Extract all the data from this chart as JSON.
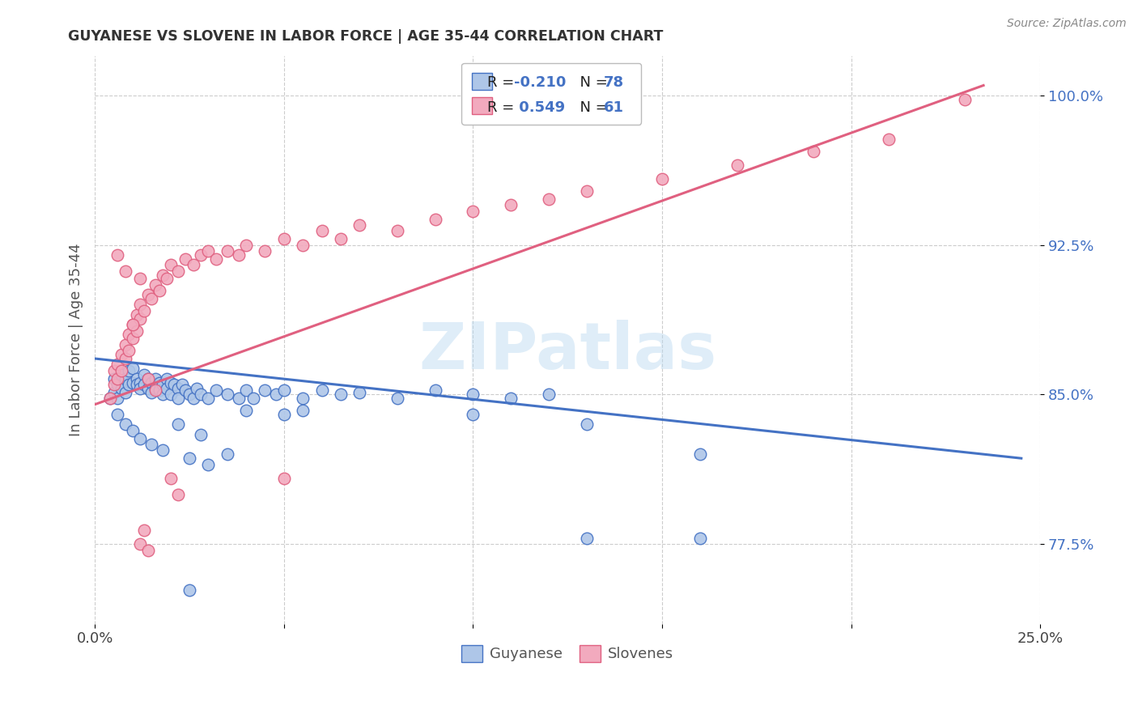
{
  "title": "GUYANESE VS SLOVENE IN LABOR FORCE | AGE 35-44 CORRELATION CHART",
  "source": "Source: ZipAtlas.com",
  "ylabel": "In Labor Force | Age 35-44",
  "yticks": [
    0.775,
    0.85,
    0.925,
    1.0
  ],
  "ytick_labels": [
    "77.5%",
    "85.0%",
    "92.5%",
    "100.0%"
  ],
  "xlim": [
    0.0,
    0.25
  ],
  "ylim": [
    0.735,
    1.02
  ],
  "blue_color": "#aec6e8",
  "pink_color": "#f2aabe",
  "blue_line_color": "#4472c4",
  "pink_line_color": "#e06080",
  "blue_line": [
    [
      0.0,
      0.868
    ],
    [
      0.245,
      0.818
    ]
  ],
  "pink_line": [
    [
      0.0,
      0.845
    ],
    [
      0.235,
      1.005
    ]
  ],
  "blue_scatter": [
    [
      0.004,
      0.848
    ],
    [
      0.005,
      0.851
    ],
    [
      0.005,
      0.858
    ],
    [
      0.006,
      0.855
    ],
    [
      0.006,
      0.848
    ],
    [
      0.007,
      0.853
    ],
    [
      0.007,
      0.86
    ],
    [
      0.008,
      0.858
    ],
    [
      0.008,
      0.851
    ],
    [
      0.009,
      0.862
    ],
    [
      0.009,
      0.855
    ],
    [
      0.01,
      0.863
    ],
    [
      0.01,
      0.856
    ],
    [
      0.011,
      0.858
    ],
    [
      0.011,
      0.855
    ],
    [
      0.012,
      0.856
    ],
    [
      0.012,
      0.853
    ],
    [
      0.013,
      0.86
    ],
    [
      0.013,
      0.855
    ],
    [
      0.014,
      0.858
    ],
    [
      0.014,
      0.853
    ],
    [
      0.015,
      0.856
    ],
    [
      0.015,
      0.851
    ],
    [
      0.016,
      0.858
    ],
    [
      0.016,
      0.853
    ],
    [
      0.017,
      0.856
    ],
    [
      0.017,
      0.852
    ],
    [
      0.018,
      0.855
    ],
    [
      0.018,
      0.85
    ],
    [
      0.019,
      0.858
    ],
    [
      0.019,
      0.853
    ],
    [
      0.02,
      0.856
    ],
    [
      0.02,
      0.85
    ],
    [
      0.021,
      0.855
    ],
    [
      0.022,
      0.853
    ],
    [
      0.022,
      0.848
    ],
    [
      0.023,
      0.855
    ],
    [
      0.024,
      0.852
    ],
    [
      0.025,
      0.85
    ],
    [
      0.026,
      0.848
    ],
    [
      0.027,
      0.853
    ],
    [
      0.028,
      0.85
    ],
    [
      0.03,
      0.848
    ],
    [
      0.032,
      0.852
    ],
    [
      0.035,
      0.85
    ],
    [
      0.038,
      0.848
    ],
    [
      0.04,
      0.852
    ],
    [
      0.042,
      0.848
    ],
    [
      0.045,
      0.852
    ],
    [
      0.048,
      0.85
    ],
    [
      0.05,
      0.852
    ],
    [
      0.055,
      0.848
    ],
    [
      0.06,
      0.852
    ],
    [
      0.065,
      0.85
    ],
    [
      0.07,
      0.851
    ],
    [
      0.08,
      0.848
    ],
    [
      0.09,
      0.852
    ],
    [
      0.1,
      0.85
    ],
    [
      0.11,
      0.848
    ],
    [
      0.12,
      0.85
    ],
    [
      0.006,
      0.84
    ],
    [
      0.008,
      0.835
    ],
    [
      0.01,
      0.832
    ],
    [
      0.012,
      0.828
    ],
    [
      0.015,
      0.825
    ],
    [
      0.018,
      0.822
    ],
    [
      0.025,
      0.818
    ],
    [
      0.03,
      0.815
    ],
    [
      0.022,
      0.835
    ],
    [
      0.028,
      0.83
    ],
    [
      0.035,
      0.82
    ],
    [
      0.04,
      0.842
    ],
    [
      0.05,
      0.84
    ],
    [
      0.055,
      0.842
    ],
    [
      0.1,
      0.84
    ],
    [
      0.13,
      0.835
    ],
    [
      0.16,
      0.82
    ],
    [
      0.13,
      0.778
    ],
    [
      0.16,
      0.778
    ],
    [
      0.025,
      0.752
    ]
  ],
  "pink_scatter": [
    [
      0.004,
      0.848
    ],
    [
      0.005,
      0.855
    ],
    [
      0.005,
      0.862
    ],
    [
      0.006,
      0.858
    ],
    [
      0.006,
      0.865
    ],
    [
      0.007,
      0.862
    ],
    [
      0.007,
      0.87
    ],
    [
      0.008,
      0.868
    ],
    [
      0.008,
      0.875
    ],
    [
      0.009,
      0.872
    ],
    [
      0.009,
      0.88
    ],
    [
      0.01,
      0.878
    ],
    [
      0.01,
      0.885
    ],
    [
      0.011,
      0.882
    ],
    [
      0.011,
      0.89
    ],
    [
      0.012,
      0.888
    ],
    [
      0.012,
      0.895
    ],
    [
      0.013,
      0.892
    ],
    [
      0.014,
      0.9
    ],
    [
      0.015,
      0.898
    ],
    [
      0.016,
      0.905
    ],
    [
      0.017,
      0.902
    ],
    [
      0.018,
      0.91
    ],
    [
      0.019,
      0.908
    ],
    [
      0.02,
      0.915
    ],
    [
      0.022,
      0.912
    ],
    [
      0.024,
      0.918
    ],
    [
      0.026,
      0.915
    ],
    [
      0.028,
      0.92
    ],
    [
      0.03,
      0.922
    ],
    [
      0.032,
      0.918
    ],
    [
      0.035,
      0.922
    ],
    [
      0.038,
      0.92
    ],
    [
      0.04,
      0.925
    ],
    [
      0.045,
      0.922
    ],
    [
      0.05,
      0.928
    ],
    [
      0.055,
      0.925
    ],
    [
      0.06,
      0.932
    ],
    [
      0.065,
      0.928
    ],
    [
      0.07,
      0.935
    ],
    [
      0.08,
      0.932
    ],
    [
      0.09,
      0.938
    ],
    [
      0.1,
      0.942
    ],
    [
      0.11,
      0.945
    ],
    [
      0.12,
      0.948
    ],
    [
      0.13,
      0.952
    ],
    [
      0.15,
      0.958
    ],
    [
      0.17,
      0.965
    ],
    [
      0.19,
      0.972
    ],
    [
      0.21,
      0.978
    ],
    [
      0.23,
      0.998
    ],
    [
      0.006,
      0.92
    ],
    [
      0.008,
      0.912
    ],
    [
      0.012,
      0.908
    ],
    [
      0.01,
      0.885
    ],
    [
      0.014,
      0.858
    ],
    [
      0.016,
      0.852
    ],
    [
      0.02,
      0.808
    ],
    [
      0.022,
      0.8
    ],
    [
      0.05,
      0.808
    ],
    [
      0.012,
      0.775
    ],
    [
      0.013,
      0.782
    ],
    [
      0.014,
      0.772
    ]
  ],
  "watermark_text": "ZIPatlas",
  "legend_labels_bottom": [
    "Guyanese",
    "Slovenes"
  ]
}
